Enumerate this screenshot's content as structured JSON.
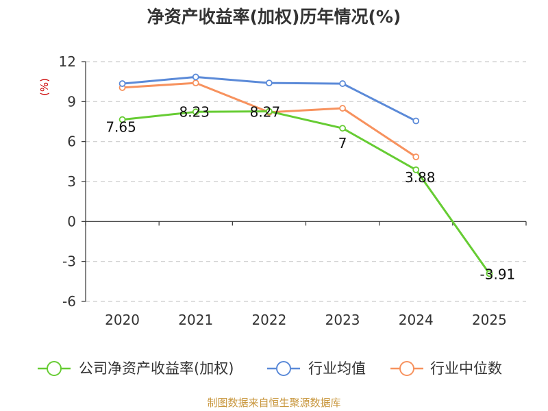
{
  "colors": {
    "company": "#66cc33",
    "industry_avg": "#5b8ad8",
    "industry_median": "#f7925e",
    "grid": "#cccccc",
    "axis": "#333333"
  },
  "source": "制图数据来自恒生聚源数据库",
  "chart_data": {
    "type": "line",
    "title": "净资产收益率(加权)历年情况(%)",
    "ylabel": "(%)",
    "xlabel": "",
    "categories": [
      "2020",
      "2021",
      "2022",
      "2023",
      "2024",
      "2025"
    ],
    "ylim": [
      -6,
      12
    ],
    "yticks": [
      -6,
      -3,
      0,
      3,
      6,
      9,
      12
    ],
    "grid": true,
    "legend_position": "bottom",
    "series": [
      {
        "name": "公司净资产收益率(加权)",
        "color_key": "company",
        "values": [
          7.65,
          8.23,
          8.27,
          7,
          3.88,
          -3.91
        ],
        "labels": [
          "7.65",
          "8.23",
          "8.27",
          "7",
          "3.88",
          "-3.91"
        ],
        "show_labels": true
      },
      {
        "name": "行业均值",
        "color_key": "industry_avg",
        "values": [
          10.35,
          10.85,
          10.4,
          10.35,
          7.55,
          null
        ],
        "show_labels": false
      },
      {
        "name": "行业中位数",
        "color_key": "industry_median",
        "values": [
          10.05,
          10.4,
          8.2,
          8.5,
          4.85,
          null
        ],
        "show_labels": false
      }
    ]
  }
}
